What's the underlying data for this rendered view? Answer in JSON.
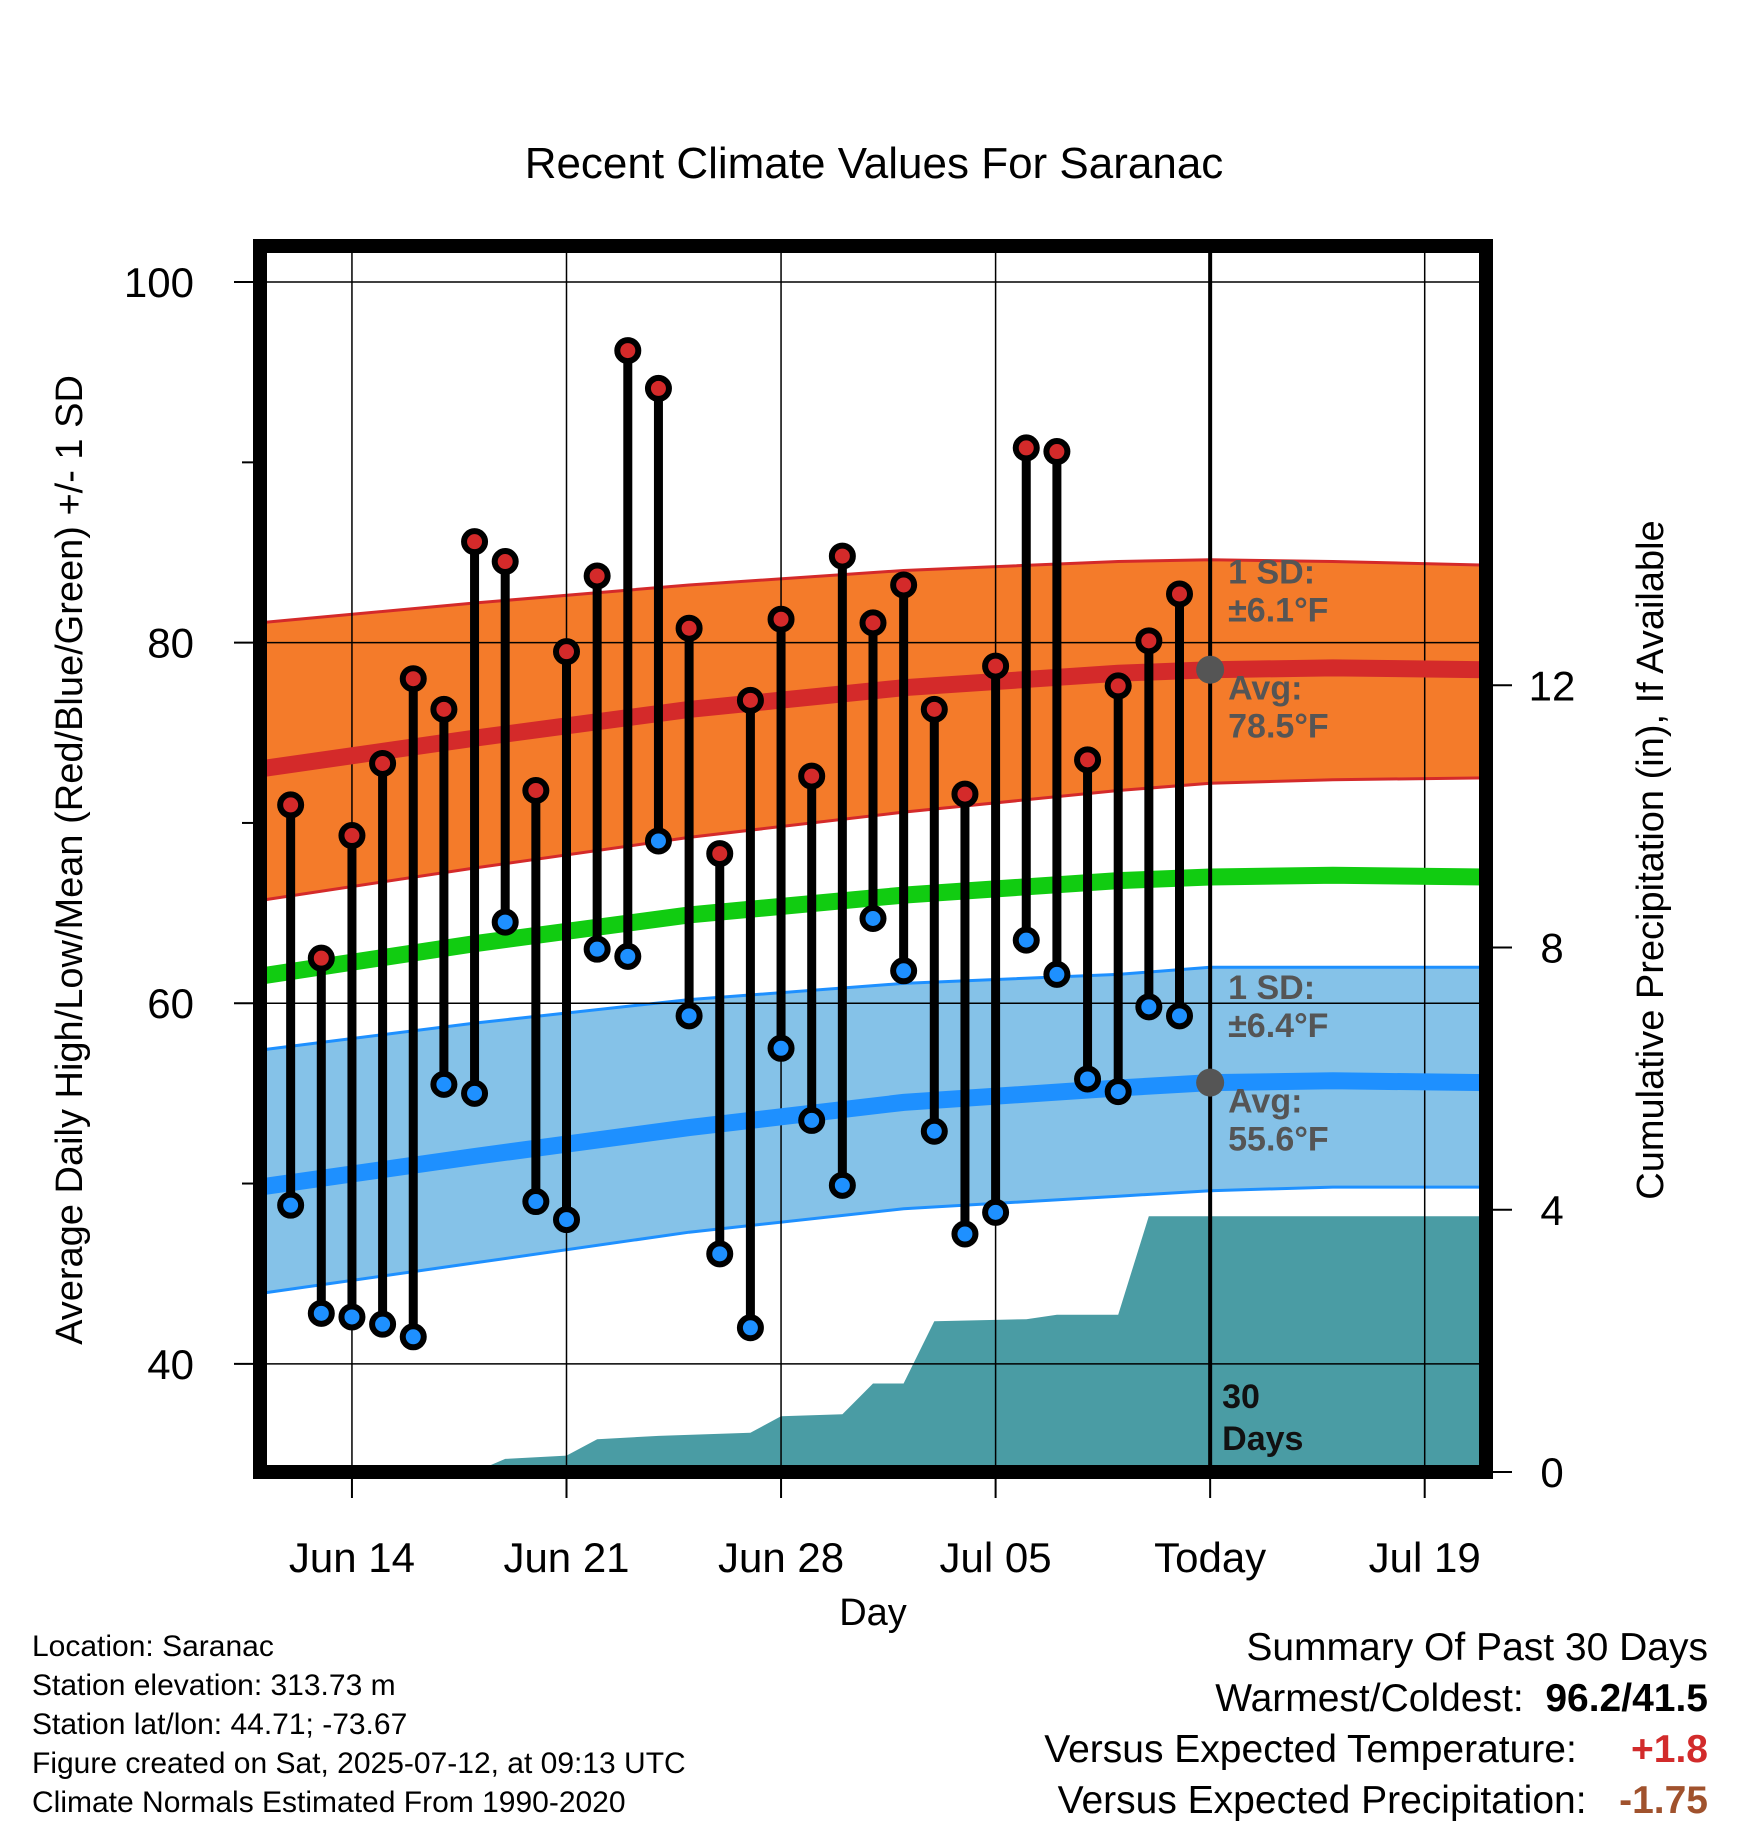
{
  "chart_data": {
    "type": "line",
    "title": "Recent Climate Values For Saranac",
    "xlabel": "Day",
    "ylabel": "Average Daily High/Low/Mean (Red/Blue/Green) +/- 1 SD",
    "y2label": "Cumulative Precipitation (in), If Available",
    "ylim": [
      34,
      102
    ],
    "y2lim": [
      0,
      18.7
    ],
    "yticks": [
      40,
      60,
      80,
      100
    ],
    "y2ticks": [
      0,
      4,
      8,
      12
    ],
    "x_range": [
      "2025-06-11",
      "2025-07-21"
    ],
    "xticks": [
      {
        "date": "2025-06-14",
        "label": "Jun 14"
      },
      {
        "date": "2025-06-21",
        "label": "Jun 21"
      },
      {
        "date": "2025-06-28",
        "label": "Jun 28"
      },
      {
        "date": "2025-07-05",
        "label": "Jul 05"
      },
      {
        "date": "2025-07-12",
        "label": "Today"
      },
      {
        "date": "2025-07-19",
        "label": "Jul 19"
      }
    ],
    "today": "2025-07-12",
    "today_label_lines": [
      "30",
      "Days"
    ],
    "daily": [
      {
        "date": "2025-06-12",
        "high": 71.0,
        "low": 48.8
      },
      {
        "date": "2025-06-13",
        "high": 62.5,
        "low": 42.8
      },
      {
        "date": "2025-06-14",
        "high": 69.3,
        "low": 42.6
      },
      {
        "date": "2025-06-15",
        "high": 73.3,
        "low": 42.2
      },
      {
        "date": "2025-06-16",
        "high": 78.0,
        "low": 41.5
      },
      {
        "date": "2025-06-17",
        "high": 76.3,
        "low": 55.5
      },
      {
        "date": "2025-06-18",
        "high": 85.6,
        "low": 55.0
      },
      {
        "date": "2025-06-19",
        "high": 84.5,
        "low": 64.5
      },
      {
        "date": "2025-06-20",
        "high": 71.8,
        "low": 49.0
      },
      {
        "date": "2025-06-21",
        "high": 79.5,
        "low": 48.0
      },
      {
        "date": "2025-06-22",
        "high": 83.7,
        "low": 63.0
      },
      {
        "date": "2025-06-23",
        "high": 96.2,
        "low": 62.6
      },
      {
        "date": "2025-06-24",
        "high": 94.1,
        "low": 69.0
      },
      {
        "date": "2025-06-25",
        "high": 80.8,
        "low": 59.3
      },
      {
        "date": "2025-06-26",
        "high": 68.3,
        "low": 46.1
      },
      {
        "date": "2025-06-27",
        "high": 76.8,
        "low": 42.0
      },
      {
        "date": "2025-06-28",
        "high": 81.3,
        "low": 57.5
      },
      {
        "date": "2025-06-29",
        "high": 72.6,
        "low": 53.5
      },
      {
        "date": "2025-06-30",
        "high": 84.8,
        "low": 49.9
      },
      {
        "date": "2025-07-01",
        "high": 81.1,
        "low": 64.7
      },
      {
        "date": "2025-07-02",
        "high": 83.2,
        "low": 61.8
      },
      {
        "date": "2025-07-03",
        "high": 76.3,
        "low": 52.9
      },
      {
        "date": "2025-07-04",
        "high": 71.6,
        "low": 47.2
      },
      {
        "date": "2025-07-05",
        "high": 78.7,
        "low": 48.4
      },
      {
        "date": "2025-07-06",
        "high": 90.8,
        "low": 63.5
      },
      {
        "date": "2025-07-07",
        "high": 90.6,
        "low": 61.6
      },
      {
        "date": "2025-07-08",
        "high": 73.5,
        "low": 55.8
      },
      {
        "date": "2025-07-09",
        "high": 77.6,
        "low": 55.1
      },
      {
        "date": "2025-07-10",
        "high": 80.1,
        "low": 59.8
      },
      {
        "date": "2025-07-11",
        "high": 82.7,
        "low": 59.3
      }
    ],
    "normals": [
      {
        "date": "2025-06-11",
        "high": 73.0,
        "high_upper": 81.1,
        "high_lower": 65.7,
        "mean": 61.5,
        "low": 49.8,
        "low_upper": 57.4,
        "low_lower": 43.9
      },
      {
        "date": "2025-06-18",
        "high": 74.7,
        "high_upper": 82.2,
        "high_lower": 67.5,
        "mean": 63.3,
        "low": 51.5,
        "low_upper": 58.9,
        "low_lower": 45.6
      },
      {
        "date": "2025-06-25",
        "high": 76.3,
        "high_upper": 83.2,
        "high_lower": 69.2,
        "mean": 64.9,
        "low": 53.1,
        "low_upper": 60.2,
        "low_lower": 47.3
      },
      {
        "date": "2025-07-02",
        "high": 77.5,
        "high_upper": 84.0,
        "high_lower": 70.6,
        "mean": 66.0,
        "low": 54.5,
        "low_upper": 61.1,
        "low_lower": 48.6
      },
      {
        "date": "2025-07-09",
        "high": 78.3,
        "high_upper": 84.5,
        "high_lower": 71.8,
        "mean": 66.8,
        "low": 55.3,
        "low_upper": 61.6,
        "low_lower": 49.3
      },
      {
        "date": "2025-07-12",
        "high": 78.5,
        "high_upper": 84.6,
        "high_lower": 72.2,
        "mean": 67.0,
        "low": 55.6,
        "low_upper": 62.0,
        "low_lower": 49.6
      },
      {
        "date": "2025-07-16",
        "high": 78.6,
        "high_upper": 84.5,
        "high_lower": 72.4,
        "mean": 67.1,
        "low": 55.7,
        "low_upper": 62.0,
        "low_lower": 49.8
      },
      {
        "date": "2025-07-21",
        "high": 78.5,
        "high_upper": 84.3,
        "high_lower": 72.5,
        "mean": 67.0,
        "low": 55.6,
        "low_upper": 62.0,
        "low_lower": 49.8
      }
    ],
    "precip_cumulative": [
      {
        "date": "2025-06-11",
        "value": 0.0
      },
      {
        "date": "2025-06-18",
        "value": 0.0
      },
      {
        "date": "2025-06-19",
        "value": 0.2
      },
      {
        "date": "2025-06-21",
        "value": 0.25
      },
      {
        "date": "2025-06-22",
        "value": 0.5
      },
      {
        "date": "2025-06-24",
        "value": 0.55
      },
      {
        "date": "2025-06-27",
        "value": 0.6
      },
      {
        "date": "2025-06-28",
        "value": 0.85
      },
      {
        "date": "2025-06-30",
        "value": 0.88
      },
      {
        "date": "2025-07-01",
        "value": 1.35
      },
      {
        "date": "2025-07-02",
        "value": 1.35
      },
      {
        "date": "2025-07-03",
        "value": 2.3
      },
      {
        "date": "2025-07-06",
        "value": 2.33
      },
      {
        "date": "2025-07-07",
        "value": 2.4
      },
      {
        "date": "2025-07-09",
        "value": 2.4
      },
      {
        "date": "2025-07-10",
        "value": 3.9
      },
      {
        "date": "2025-07-21",
        "value": 3.9
      }
    ],
    "annotations": {
      "high_sd_lines": [
        "1 SD:",
        "±6.1°F"
      ],
      "high_avg_lines": [
        "Avg:",
        "78.5°F"
      ],
      "low_sd_lines": [
        "1 SD:",
        "±6.4°F"
      ],
      "low_avg_lines": [
        "Avg:",
        "55.6°F"
      ]
    },
    "colors": {
      "high_band": "#f47b2a",
      "high_line": "#d42a2a",
      "mean_line": "#11cc11",
      "low_band": "#85c2e8",
      "low_line": "#1e90ff",
      "precip": "#4a9ca4",
      "high_marker": "#d42a2a",
      "low_marker": "#1e90ff"
    }
  },
  "footer": {
    "location": "Location: Saranac",
    "elevation": "Station elevation: 313.73 m",
    "latlon": "Station lat/lon: 44.71; -73.67",
    "created": "Figure created on Sat, 2025-07-12, at 09:13 UTC",
    "normals": "Climate Normals Estimated From 1990-2020"
  },
  "summary": {
    "title": "Summary Of Past 30 Days",
    "warmest_label": "Warmest/Coldest:",
    "warmest_value": "96.2/41.5",
    "temp_label": "Versus Expected Temperature:",
    "temp_value": "+1.8",
    "precip_label": "Versus Expected Precipitation:",
    "precip_value": "-1.75"
  }
}
